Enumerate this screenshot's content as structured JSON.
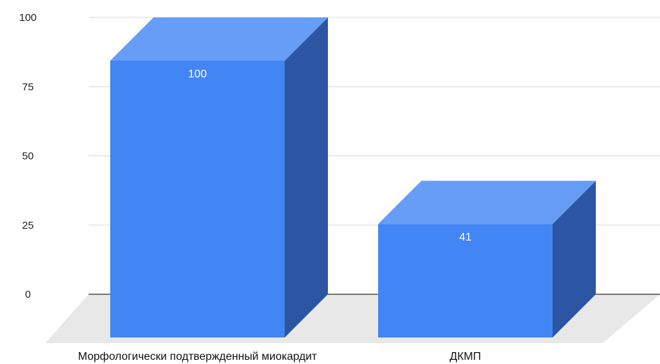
{
  "chart_data": {
    "type": "bar",
    "style": "3d",
    "categories": [
      "Морфологически подтвержденный миокардит",
      "ДКМП"
    ],
    "values": [
      100,
      41
    ],
    "data_labels": [
      "100",
      "41"
    ],
    "y_ticks": [
      "0",
      "25",
      "50",
      "75",
      "100"
    ],
    "ylim": [
      0,
      100
    ],
    "grid": true,
    "legend": "none",
    "colors": {
      "bar_front": "#4285f4",
      "bar_top": "#669df6",
      "bar_side": "#2c56a3",
      "floor": "#e8e8e8",
      "gridline": "#d9d9d9",
      "baseline": "#333333"
    }
  }
}
